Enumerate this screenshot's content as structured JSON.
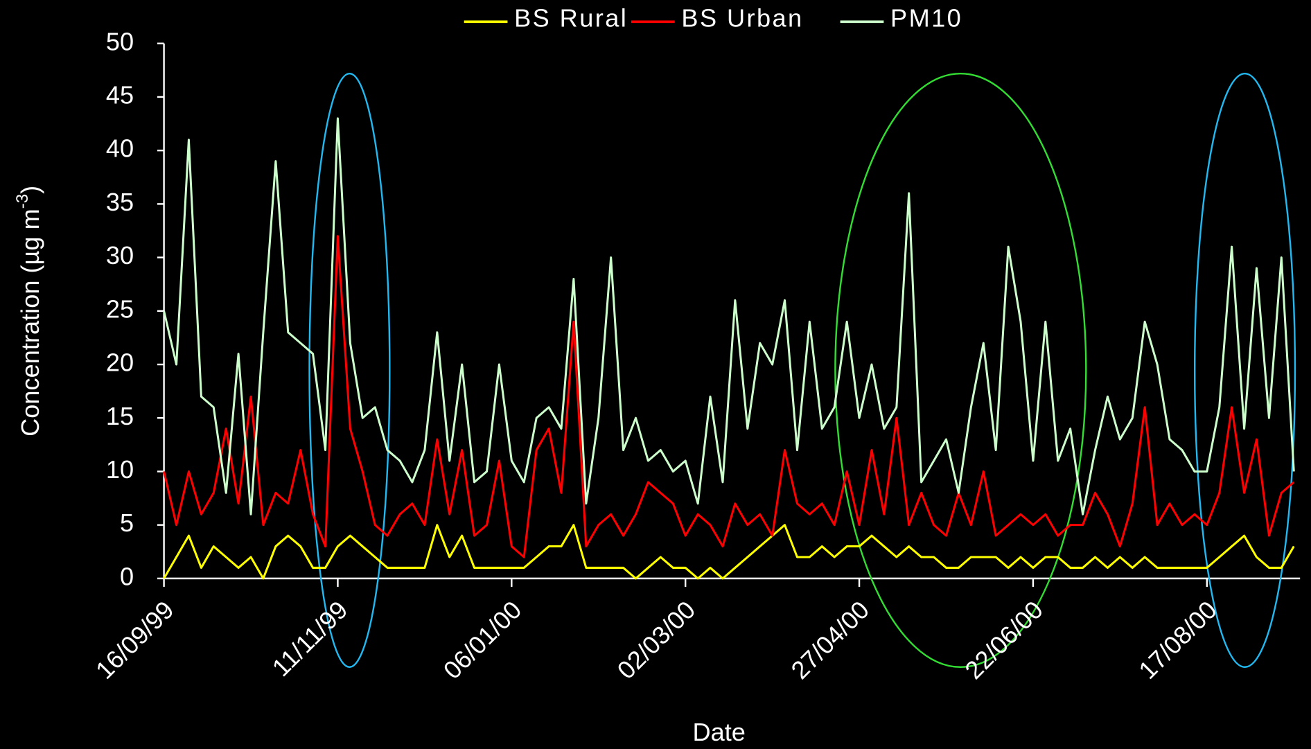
{
  "chart_data": {
    "type": "line",
    "x_label": "Date",
    "y_label": {
      "text": "Concentration (µg m",
      "superscript": "-3",
      "end": ")"
    },
    "x": [
      "16/09/99",
      "20/09/99",
      "24/09/99",
      "28/09/99",
      "02/10/99",
      "06/10/99",
      "10/10/99",
      "14/10/99",
      "18/10/99",
      "22/10/99",
      "26/10/99",
      "30/10/99",
      "03/11/99",
      "07/11/99",
      "11/11/99",
      "15/11/99",
      "19/11/99",
      "23/11/99",
      "27/11/99",
      "01/12/99",
      "05/12/99",
      "09/12/99",
      "13/12/99",
      "17/12/99",
      "21/12/99",
      "25/12/99",
      "29/12/99",
      "02/01/00",
      "06/01/00",
      "10/01/00",
      "14/01/00",
      "18/01/00",
      "22/01/00",
      "26/01/00",
      "30/01/00",
      "03/02/00",
      "07/02/00",
      "11/02/00",
      "15/02/00",
      "19/02/00",
      "23/02/00",
      "27/02/00",
      "02/03/00",
      "06/03/00",
      "10/03/00",
      "14/03/00",
      "18/03/00",
      "22/03/00",
      "26/03/00",
      "30/03/00",
      "03/04/00",
      "07/04/00",
      "11/04/00",
      "15/04/00",
      "19/04/00",
      "23/04/00",
      "27/04/00",
      "01/05/00",
      "05/05/00",
      "09/05/00",
      "13/05/00",
      "17/05/00",
      "21/05/00",
      "25/05/00",
      "29/05/00",
      "02/06/00",
      "06/06/00",
      "10/06/00",
      "14/06/00",
      "18/06/00",
      "22/06/00",
      "26/06/00",
      "30/06/00",
      "04/07/00",
      "08/07/00",
      "12/07/00",
      "16/07/00",
      "20/07/00",
      "24/07/00",
      "28/07/00",
      "01/08/00",
      "05/08/00",
      "09/08/00",
      "13/08/00",
      "17/08/00",
      "21/08/00",
      "25/08/00",
      "29/08/00",
      "02/09/00",
      "06/09/00",
      "10/09/00",
      "14/09/00"
    ],
    "series": [
      {
        "name": "BS Rural",
        "color": "#ffff00",
        "values": [
          0,
          2,
          4,
          1,
          3,
          2,
          1,
          2,
          0,
          3,
          4,
          3,
          1,
          1,
          3,
          4,
          3,
          2,
          1,
          1,
          1,
          1,
          5,
          2,
          4,
          1,
          1,
          1,
          1,
          1,
          2,
          3,
          3,
          5,
          1,
          1,
          1,
          1,
          0,
          1,
          2,
          1,
          1,
          0,
          1,
          0,
          1,
          2,
          3,
          4,
          5,
          2,
          2,
          3,
          2,
          3,
          3,
          4,
          3,
          2,
          3,
          2,
          2,
          1,
          1,
          2,
          2,
          2,
          1,
          2,
          1,
          2,
          2,
          1,
          1,
          2,
          1,
          2,
          1,
          2,
          1,
          1,
          1,
          1,
          1,
          2,
          3,
          4,
          2,
          1,
          1,
          3
        ]
      },
      {
        "name": "BS Urban",
        "color": "#ff0000",
        "values": [
          10,
          5,
          10,
          6,
          8,
          14,
          7,
          17,
          5,
          8,
          7,
          12,
          6,
          3,
          32,
          14,
          10,
          5,
          4,
          6,
          7,
          5,
          13,
          6,
          12,
          4,
          5,
          11,
          3,
          2,
          12,
          14,
          8,
          24,
          3,
          5,
          6,
          4,
          6,
          9,
          8,
          7,
          4,
          6,
          5,
          3,
          7,
          5,
          6,
          4,
          12,
          7,
          6,
          7,
          5,
          10,
          5,
          12,
          6,
          15,
          5,
          8,
          5,
          4,
          8,
          5,
          10,
          4,
          5,
          6,
          5,
          6,
          4,
          5,
          5,
          8,
          6,
          3,
          7,
          16,
          5,
          7,
          5,
          6,
          5,
          8,
          16,
          8,
          13,
          4,
          8,
          9
        ]
      },
      {
        "name": "PM10",
        "color": "#ccffcc",
        "values": [
          25,
          20,
          41,
          17,
          16,
          8,
          21,
          6,
          23,
          39,
          23,
          22,
          21,
          12,
          43,
          22,
          15,
          16,
          12,
          11,
          9,
          12,
          23,
          11,
          20,
          9,
          10,
          20,
          11,
          9,
          15,
          16,
          14,
          28,
          7,
          15,
          30,
          12,
          15,
          11,
          12,
          10,
          11,
          7,
          17,
          9,
          26,
          14,
          22,
          20,
          26,
          12,
          24,
          14,
          16,
          24,
          15,
          20,
          14,
          16,
          36,
          9,
          11,
          13,
          8,
          16,
          22,
          12,
          31,
          24,
          11,
          24,
          11,
          14,
          6,
          12,
          17,
          13,
          15,
          24,
          20,
          13,
          12,
          10,
          10,
          16,
          31,
          14,
          29,
          15,
          30,
          10
        ]
      }
    ],
    "xlim": [
      "16/09/99",
      "16/09/00"
    ],
    "xticks": [
      "16/09/99",
      "11/11/99",
      "06/01/00",
      "02/03/00",
      "27/04/00",
      "22/06/00",
      "17/08/00"
    ],
    "ylim": [
      0,
      50
    ],
    "yticks": [
      0,
      5,
      10,
      15,
      20,
      25,
      30,
      35,
      40,
      45,
      50
    ],
    "legend": "top"
  }
}
